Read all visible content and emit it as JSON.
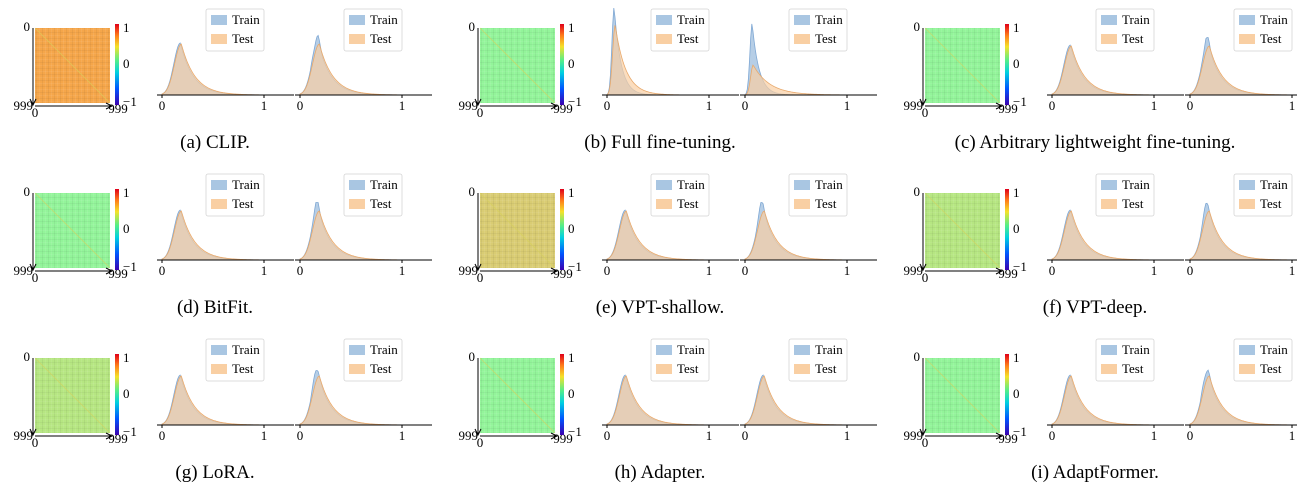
{
  "legend": {
    "train": "Train",
    "test": "Test"
  },
  "axis": {
    "matrix_start": "0",
    "matrix_end": "999",
    "hist_start": "0",
    "hist_end": "1",
    "colorbar_ticks": [
      "1",
      "0",
      "−1"
    ]
  },
  "colors": {
    "train": "#a9c6e2",
    "test": "#f9cfa3",
    "overlap": "#cdb397",
    "matrix_orange": "#f5a64a",
    "matrix_green": "#93f49a",
    "matrix_yellow": "#d9cc73",
    "matrix_lightgreen": "#b6e682"
  },
  "panels": [
    {
      "caption": "(a) CLIP.",
      "matrix_style": "orange"
    },
    {
      "caption": "(b) Full fine-tuning.",
      "matrix_style": "green"
    },
    {
      "caption": "(c) Arbitrary lightweight fine-tuning.",
      "matrix_style": "green"
    },
    {
      "caption": "(d) BitFit.",
      "matrix_style": "green"
    },
    {
      "caption": "(e) VPT-shallow.",
      "matrix_style": "yellow"
    },
    {
      "caption": "(f) VPT-deep.",
      "matrix_style": "lightgreen"
    },
    {
      "caption": "(g) LoRA.",
      "matrix_style": "lightgreen"
    },
    {
      "caption": "(h) Adapter.",
      "matrix_style": "green"
    },
    {
      "caption": "(i) AdaptFormer.",
      "matrix_style": "green"
    }
  ]
}
